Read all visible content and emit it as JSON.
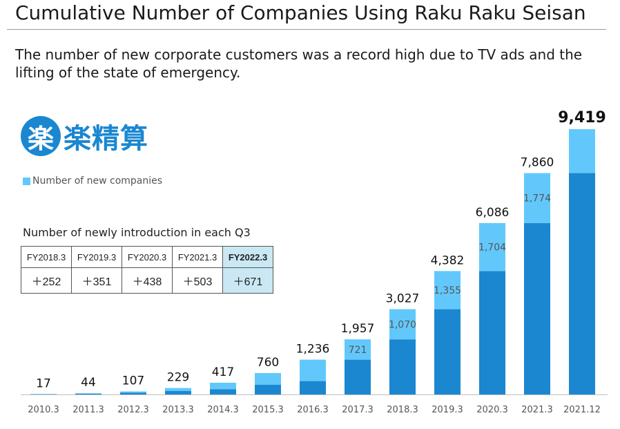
{
  "header": {
    "title": "Cumulative Number of Companies Using Raku Raku Seisan",
    "subtitle": "The number of new corporate customers was a record high due to TV ads and the lifting of the state of emergency."
  },
  "logo": {
    "mark": "楽",
    "text": "楽精算"
  },
  "colors": {
    "base": "#1a87d0",
    "new": "#62c8fb",
    "table_highlight": "#c9e8f3"
  },
  "q3_table": {
    "title": "Number of newly introduction in each Q3",
    "headers": [
      "FY2018.3",
      "FY2019.3",
      "FY2020.3",
      "FY2021.3",
      "FY2022.3"
    ],
    "values": [
      "＋252",
      "＋351",
      "＋438",
      "＋503",
      "＋671"
    ]
  },
  "chart_data": {
    "type": "bar",
    "stacked": true,
    "categories": [
      "2010.3",
      "2011.3",
      "2012.3",
      "2013.3",
      "2014.3",
      "2015.3",
      "2016.3",
      "2017.3",
      "2018.3",
      "2019.3",
      "2020.3",
      "2021.3",
      "2021.12"
    ],
    "totals": [
      17,
      44,
      107,
      229,
      417,
      760,
      1236,
      1957,
      3027,
      4382,
      6086,
      7860,
      9419
    ],
    "total_labels": [
      "17",
      "44",
      "107",
      "229",
      "417",
      "760",
      "1,236",
      "1,957",
      "3,027",
      "4,382",
      "6,086",
      "7,860",
      "9,419"
    ],
    "series": [
      {
        "values": [
          10,
          27,
          63,
          122,
          188,
          343,
          476,
          1236,
          1957,
          3027,
          4382,
          6086,
          7860
        ]
      },
      {
        "name": "Number of new companies",
        "values": [
          7,
          17,
          44,
          107,
          229,
          417,
          760,
          721,
          1070,
          1355,
          1704,
          1774,
          1559
        ]
      }
    ],
    "new_labels": [
      "",
      "",
      "",
      "",
      "",
      "",
      "",
      "721",
      "1,070",
      "1,355",
      "1,704",
      "1,774",
      ""
    ],
    "ylim": [
      0,
      9800
    ],
    "legend": {
      "label": "Number of new companies",
      "position": "top-left"
    }
  }
}
